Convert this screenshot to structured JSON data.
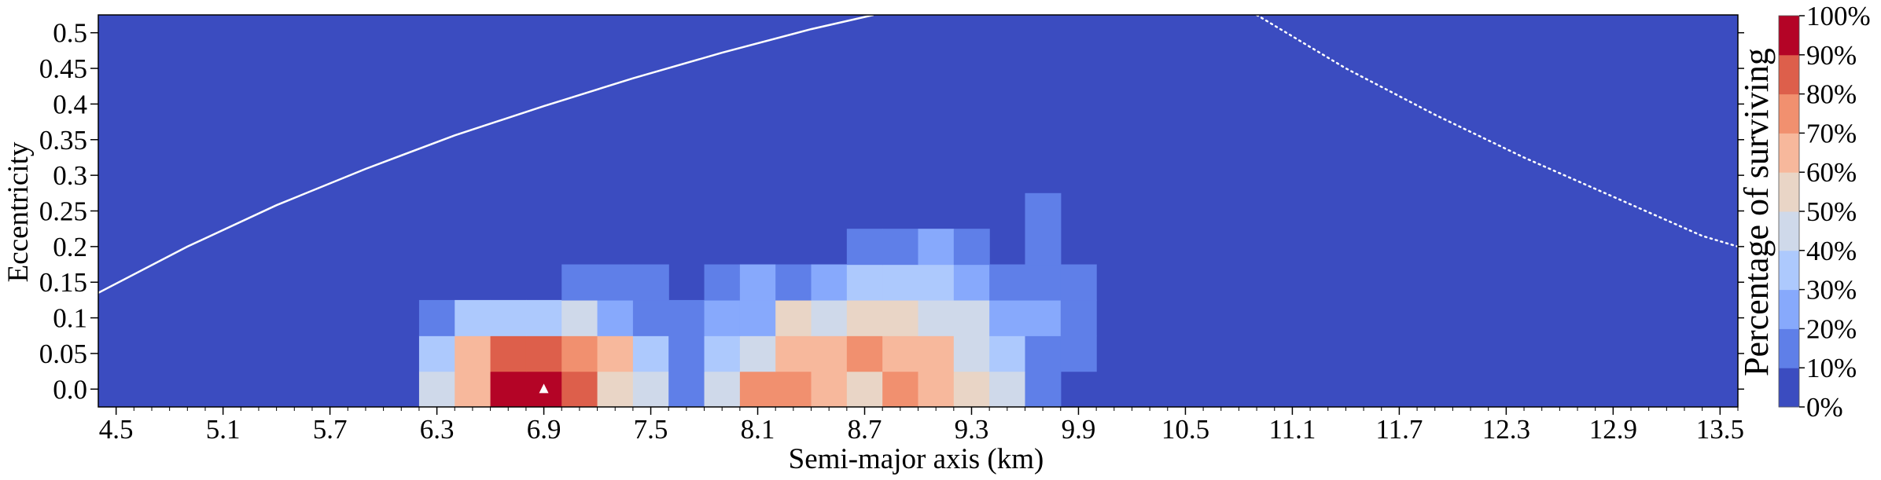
{
  "chart_data": {
    "type": "heatmap",
    "xlabel": "Semi-major axis (km)",
    "ylabel": "Eccentricity",
    "colorbar_label": "Percentage of surviving",
    "xlim": [
      4.4,
      13.6
    ],
    "ylim": [
      -0.025,
      0.525
    ],
    "x_tick_values": [
      4.5,
      5.1,
      5.7,
      6.3,
      6.9,
      7.5,
      8.1,
      8.7,
      9.3,
      9.9,
      10.5,
      11.1,
      11.7,
      12.3,
      12.9,
      13.5
    ],
    "x_tick_labels": [
      "4.5",
      "5.1",
      "5.7",
      "6.3",
      "6.9",
      "7.5",
      "8.1",
      "8.7",
      "9.3",
      "9.9",
      "10.5",
      "11.1",
      "11.7",
      "12.3",
      "12.9",
      "13.5"
    ],
    "y_tick_values": [
      0.0,
      0.05,
      0.1,
      0.15,
      0.2,
      0.25,
      0.3,
      0.35,
      0.4,
      0.45,
      0.5
    ],
    "y_tick_labels": [
      "0.0",
      "0.05",
      "0.1",
      "0.15",
      "0.2",
      "0.25",
      "0.3",
      "0.35",
      "0.4",
      "0.45",
      "0.5"
    ],
    "cell_width_km": 0.2,
    "cell_height_ecc": 0.05,
    "background_value": 0,
    "colorbar": {
      "ticks": [
        "0%",
        "10%",
        "20%",
        "30%",
        "40%",
        "50%",
        "60%",
        "70%",
        "80%",
        "90%",
        "100%"
      ],
      "bin_colors": [
        "#3b4cc0",
        "#5f7fe8",
        "#87a9fc",
        "#adc9fd",
        "#cfd9ea",
        "#e9d5c6",
        "#f7b89c",
        "#f1906f",
        "#dd5f4b",
        "#b40426"
      ]
    },
    "cells": [
      {
        "a": 6.3,
        "e": 0.0,
        "v": 45
      },
      {
        "a": 6.5,
        "e": 0.0,
        "v": 65
      },
      {
        "a": 6.7,
        "e": 0.0,
        "v": 95
      },
      {
        "a": 6.9,
        "e": 0.0,
        "v": 95
      },
      {
        "a": 7.1,
        "e": 0.0,
        "v": 85
      },
      {
        "a": 7.3,
        "e": 0.0,
        "v": 55
      },
      {
        "a": 7.5,
        "e": 0.0,
        "v": 45
      },
      {
        "a": 7.7,
        "e": 0.0,
        "v": 15
      },
      {
        "a": 7.9,
        "e": 0.0,
        "v": 45
      },
      {
        "a": 8.1,
        "e": 0.0,
        "v": 75
      },
      {
        "a": 8.3,
        "e": 0.0,
        "v": 75
      },
      {
        "a": 8.5,
        "e": 0.0,
        "v": 65
      },
      {
        "a": 8.7,
        "e": 0.0,
        "v": 55
      },
      {
        "a": 8.9,
        "e": 0.0,
        "v": 75
      },
      {
        "a": 9.1,
        "e": 0.0,
        "v": 65
      },
      {
        "a": 9.3,
        "e": 0.0,
        "v": 55
      },
      {
        "a": 9.5,
        "e": 0.0,
        "v": 45
      },
      {
        "a": 9.7,
        "e": 0.0,
        "v": 15
      },
      {
        "a": 6.3,
        "e": 0.05,
        "v": 35
      },
      {
        "a": 6.5,
        "e": 0.05,
        "v": 65
      },
      {
        "a": 6.7,
        "e": 0.05,
        "v": 85
      },
      {
        "a": 6.9,
        "e": 0.05,
        "v": 85
      },
      {
        "a": 7.1,
        "e": 0.05,
        "v": 75
      },
      {
        "a": 7.3,
        "e": 0.05,
        "v": 65
      },
      {
        "a": 7.5,
        "e": 0.05,
        "v": 35
      },
      {
        "a": 7.7,
        "e": 0.05,
        "v": 15
      },
      {
        "a": 7.9,
        "e": 0.05,
        "v": 35
      },
      {
        "a": 8.1,
        "e": 0.05,
        "v": 45
      },
      {
        "a": 8.3,
        "e": 0.05,
        "v": 65
      },
      {
        "a": 8.5,
        "e": 0.05,
        "v": 65
      },
      {
        "a": 8.7,
        "e": 0.05,
        "v": 75
      },
      {
        "a": 8.9,
        "e": 0.05,
        "v": 65
      },
      {
        "a": 9.1,
        "e": 0.05,
        "v": 65
      },
      {
        "a": 9.3,
        "e": 0.05,
        "v": 45
      },
      {
        "a": 9.5,
        "e": 0.05,
        "v": 35
      },
      {
        "a": 9.7,
        "e": 0.05,
        "v": 15
      },
      {
        "a": 9.9,
        "e": 0.05,
        "v": 15
      },
      {
        "a": 6.3,
        "e": 0.1,
        "v": 15
      },
      {
        "a": 6.5,
        "e": 0.1,
        "v": 35
      },
      {
        "a": 6.7,
        "e": 0.1,
        "v": 35
      },
      {
        "a": 6.9,
        "e": 0.1,
        "v": 35
      },
      {
        "a": 7.1,
        "e": 0.1,
        "v": 45
      },
      {
        "a": 7.3,
        "e": 0.1,
        "v": 25
      },
      {
        "a": 7.5,
        "e": 0.1,
        "v": 15
      },
      {
        "a": 7.7,
        "e": 0.1,
        "v": 15
      },
      {
        "a": 7.9,
        "e": 0.1,
        "v": 25
      },
      {
        "a": 8.1,
        "e": 0.1,
        "v": 25
      },
      {
        "a": 8.3,
        "e": 0.1,
        "v": 55
      },
      {
        "a": 8.5,
        "e": 0.1,
        "v": 45
      },
      {
        "a": 8.7,
        "e": 0.1,
        "v": 55
      },
      {
        "a": 8.9,
        "e": 0.1,
        "v": 55
      },
      {
        "a": 9.1,
        "e": 0.1,
        "v": 45
      },
      {
        "a": 9.3,
        "e": 0.1,
        "v": 45
      },
      {
        "a": 9.5,
        "e": 0.1,
        "v": 25
      },
      {
        "a": 9.7,
        "e": 0.1,
        "v": 25
      },
      {
        "a": 9.9,
        "e": 0.1,
        "v": 15
      },
      {
        "a": 7.1,
        "e": 0.15,
        "v": 15
      },
      {
        "a": 7.3,
        "e": 0.15,
        "v": 15
      },
      {
        "a": 7.5,
        "e": 0.15,
        "v": 15
      },
      {
        "a": 7.9,
        "e": 0.15,
        "v": 15
      },
      {
        "a": 8.1,
        "e": 0.15,
        "v": 25
      },
      {
        "a": 8.3,
        "e": 0.15,
        "v": 15
      },
      {
        "a": 8.5,
        "e": 0.15,
        "v": 25
      },
      {
        "a": 8.7,
        "e": 0.15,
        "v": 35
      },
      {
        "a": 8.9,
        "e": 0.15,
        "v": 35
      },
      {
        "a": 9.1,
        "e": 0.15,
        "v": 35
      },
      {
        "a": 9.3,
        "e": 0.15,
        "v": 25
      },
      {
        "a": 9.5,
        "e": 0.15,
        "v": 15
      },
      {
        "a": 9.7,
        "e": 0.15,
        "v": 15
      },
      {
        "a": 9.9,
        "e": 0.15,
        "v": 15
      },
      {
        "a": 8.7,
        "e": 0.2,
        "v": 15
      },
      {
        "a": 8.9,
        "e": 0.2,
        "v": 15
      },
      {
        "a": 9.1,
        "e": 0.2,
        "v": 25
      },
      {
        "a": 9.3,
        "e": 0.2,
        "v": 15
      },
      {
        "a": 9.7,
        "e": 0.2,
        "v": 15
      },
      {
        "a": 9.7,
        "e": 0.25,
        "v": 15
      }
    ],
    "marker": {
      "a": 6.9,
      "e": 0.0,
      "symbol": "triangle",
      "color": "#ffffff"
    },
    "curves": [
      {
        "style": "solid",
        "color": "#ffffff",
        "points": [
          [
            4.4,
            0.135
          ],
          [
            4.9,
            0.2
          ],
          [
            5.4,
            0.258
          ],
          [
            5.9,
            0.309
          ],
          [
            6.4,
            0.356
          ],
          [
            6.9,
            0.397
          ],
          [
            7.4,
            0.436
          ],
          [
            7.9,
            0.472
          ],
          [
            8.4,
            0.505
          ],
          [
            8.75,
            0.525
          ]
        ]
      },
      {
        "style": "dotted",
        "color": "#ffffff",
        "points": [
          [
            10.9,
            0.525
          ],
          [
            11.4,
            0.45
          ],
          [
            11.9,
            0.385
          ],
          [
            12.4,
            0.325
          ],
          [
            12.9,
            0.27
          ],
          [
            13.4,
            0.215
          ],
          [
            13.6,
            0.2
          ]
        ]
      }
    ]
  }
}
